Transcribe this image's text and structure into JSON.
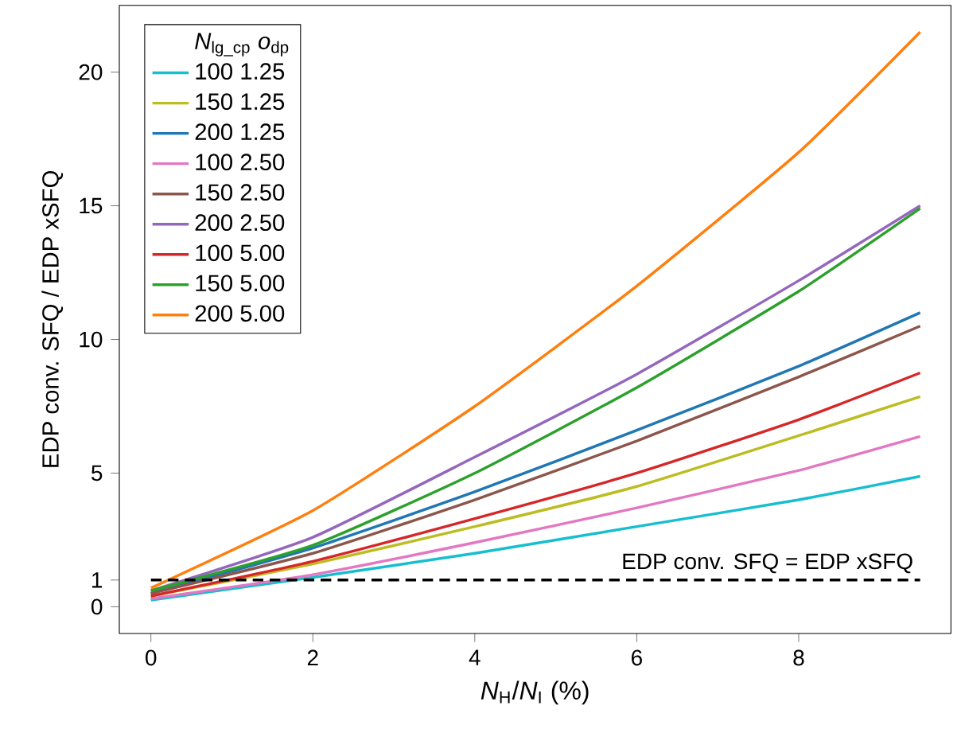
{
  "chart_data": {
    "type": "line",
    "xlabel": "*N*$_{H}$/*N*$_{I}$ (%)",
    "ylabel": "EDP  conv. SFQ / EDP xSFQ",
    "legend_title": "*N*$_{lg_cp}$   *o*$_{dp}$",
    "x": [
      0,
      2,
      4,
      6,
      8,
      9.5
    ],
    "series": [
      {
        "name": "100   1.25",
        "color": "#17becf",
        "values": [
          0.25,
          1.1,
          2.0,
          3.0,
          4.0,
          4.88
        ]
      },
      {
        "name": "150   1.25",
        "color": "#bcbd22",
        "values": [
          0.4,
          1.6,
          3.0,
          4.5,
          6.4,
          7.86
        ]
      },
      {
        "name": "200   1.25",
        "color": "#1f77b4",
        "values": [
          0.5,
          2.2,
          4.3,
          6.6,
          9.0,
          11.0
        ]
      },
      {
        "name": "100   2.50",
        "color": "#e377c2",
        "values": [
          0.3,
          1.2,
          2.4,
          3.7,
          5.1,
          6.37
        ]
      },
      {
        "name": "150   2.50",
        "color": "#8c564b",
        "values": [
          0.5,
          2.0,
          4.0,
          6.2,
          8.6,
          10.5
        ]
      },
      {
        "name": "200   2.50",
        "color": "#9467bd",
        "values": [
          0.6,
          2.6,
          5.6,
          8.7,
          12.2,
          15.0
        ]
      },
      {
        "name": "100   5.00",
        "color": "#d62728",
        "values": [
          0.4,
          1.7,
          3.3,
          5.0,
          7.0,
          8.75
        ]
      },
      {
        "name": "150   5.00",
        "color": "#2ca02c",
        "values": [
          0.6,
          2.3,
          5.0,
          8.2,
          11.8,
          14.9
        ]
      },
      {
        "name": "200   5.00",
        "color": "#ff7f0e",
        "values": [
          0.7,
          3.6,
          7.5,
          12.0,
          17.0,
          21.5
        ]
      }
    ],
    "xlim": [
      -0.39,
      9.88
    ],
    "ylim": [
      -1.0,
      22.5
    ],
    "xticks": [
      0,
      2,
      4,
      6,
      8
    ],
    "yticks": [
      0,
      1,
      5,
      10,
      15,
      20
    ],
    "ref_lines": [
      {
        "axis": "y",
        "value": 1,
        "label": "EDP conv. SFQ = EDP xSFQ",
        "color": "#000000",
        "line_style": "dashed"
      }
    ],
    "grid": false,
    "legend": "top left",
    "marker": "none",
    "line_style": "solid"
  }
}
